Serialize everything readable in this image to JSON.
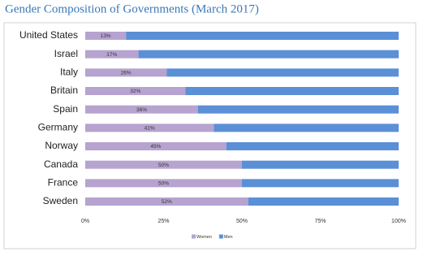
{
  "chart_data": {
    "type": "stacked-barh",
    "title": "Gender Composition of Governments (March 2017)",
    "categories": [
      "United States",
      "Israel",
      "Italy",
      "Britain",
      "Spain",
      "Germany",
      "Norway",
      "Canada",
      "France",
      "Sweden"
    ],
    "series": [
      {
        "name": "Women",
        "color": "#b6a3cf",
        "values": [
          13,
          17,
          26,
          32,
          36,
          41,
          45,
          50,
          50,
          52
        ],
        "value_labels": [
          "13%",
          "17%",
          "26%",
          "32%",
          "36%",
          "41%",
          "45%",
          "50%",
          "50%",
          "52%"
        ]
      },
      {
        "name": "Men",
        "color": "#5b8fd6",
        "values": [
          87,
          83,
          74,
          68,
          64,
          59,
          55,
          50,
          50,
          48
        ]
      }
    ],
    "xlim": [
      0,
      100
    ],
    "xticks": [
      {
        "value": 0,
        "label": "0%"
      },
      {
        "value": 25,
        "label": "25%"
      },
      {
        "value": 50,
        "label": "50%"
      },
      {
        "value": 75,
        "label": "75%"
      },
      {
        "value": 100,
        "label": "100%"
      }
    ],
    "grid": false,
    "legend": "bottom"
  }
}
